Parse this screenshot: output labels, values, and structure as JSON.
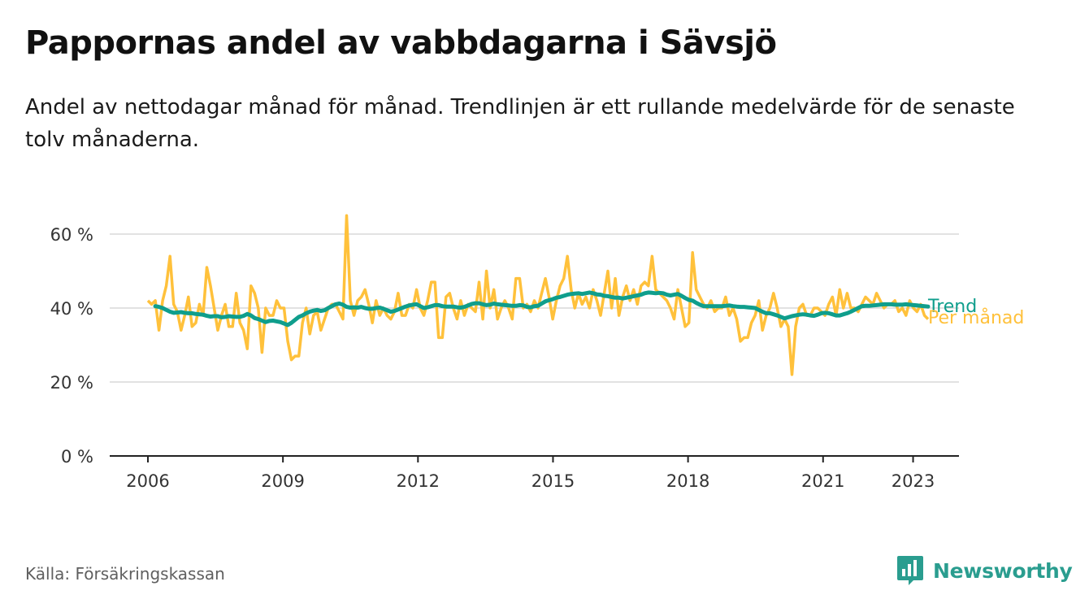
{
  "title": "Pappornas andel av vabbdagarna i Sävsjö",
  "subtitle": "Andel av nettodagar månad för månad. Trendlinjen är ett rullande medelvärde för de senaste tolv månaderna.",
  "source": "Källa: Försäkringskassan",
  "brand": "Newsworthy",
  "colors": {
    "monthly": "#ffc13b",
    "trend": "#0f9e8c",
    "brand": "#2a9d8f",
    "grid": "#d9d9d9",
    "axis": "#222222"
  },
  "chart_data": {
    "type": "line",
    "xlabel": "",
    "ylabel": "",
    "ylim": [
      0,
      60
    ],
    "yticks": [
      "0 %",
      "20 %",
      "40 %",
      "60 %"
    ],
    "xticks": [
      "2006",
      "2009",
      "2012",
      "2015",
      "2018",
      "2021",
      "2023"
    ],
    "x_start": "2006-01",
    "x_end": "2023-05",
    "grid": true,
    "series": [
      {
        "name": "Per månad",
        "values": [
          42,
          41,
          42,
          34,
          42,
          46,
          54,
          41,
          39,
          34,
          38,
          43,
          35,
          36,
          41,
          38,
          51,
          46,
          40,
          34,
          38,
          41,
          35,
          35,
          44,
          36,
          34,
          29,
          46,
          44,
          40,
          28,
          40,
          38,
          38,
          42,
          40,
          40,
          31,
          26,
          27,
          27,
          36,
          40,
          33,
          38,
          39,
          34,
          37,
          40,
          41,
          41,
          39,
          37,
          65,
          42,
          38,
          42,
          43,
          45,
          41,
          36,
          42,
          38,
          40,
          38,
          37,
          39,
          44,
          38,
          38,
          41,
          40,
          45,
          40,
          38,
          42,
          47,
          47,
          32,
          32,
          43,
          44,
          40,
          37,
          42,
          38,
          41,
          40,
          39,
          47,
          37,
          50,
          40,
          45,
          37,
          40,
          42,
          40,
          37,
          48,
          48,
          40,
          41,
          39,
          42,
          40,
          44,
          48,
          43,
          37,
          42,
          46,
          48,
          54,
          45,
          40,
          44,
          41,
          43,
          40,
          45,
          42,
          38,
          44,
          50,
          40,
          48,
          38,
          43,
          46,
          42,
          45,
          41,
          46,
          47,
          46,
          54,
          45,
          44,
          43,
          42,
          40,
          37,
          45,
          40,
          35,
          36,
          55,
          45,
          43,
          41,
          40,
          42,
          39,
          40,
          40,
          43,
          38,
          40,
          37,
          31,
          32,
          32,
          36,
          38,
          42,
          34,
          38,
          40,
          44,
          40,
          35,
          37,
          35,
          22,
          35,
          40,
          41,
          38,
          38,
          40,
          40,
          39,
          38,
          41,
          43,
          38,
          45,
          40,
          44,
          40,
          40,
          39,
          41,
          43,
          42,
          41,
          44,
          42,
          40,
          41,
          41,
          42,
          39,
          40,
          38,
          42,
          40,
          39,
          41,
          38,
          37
        ]
      },
      {
        "name": "Trend",
        "values": [
          40.5,
          40.3,
          40.0,
          39.5,
          39.0,
          38.7,
          38.8,
          38.9,
          38.7,
          38.6,
          38.6,
          38.4,
          38.3,
          38.2,
          37.9,
          37.7,
          37.8,
          37.8,
          37.5,
          37.6,
          37.8,
          37.7,
          37.6,
          37.6,
          37.9,
          38.4,
          38.0,
          37.3,
          37.0,
          36.6,
          36.2,
          36.5,
          36.6,
          36.4,
          36.2,
          35.8,
          35.4,
          36.0,
          36.8,
          37.6,
          38.0,
          38.6,
          39.0,
          39.3,
          39.5,
          39.2,
          39.4,
          40.0,
          40.5,
          41.0,
          41.2,
          40.9,
          40.3,
          40.1,
          40.2,
          40.1,
          40.3,
          40.0,
          39.8,
          39.8,
          40.0,
          40.1,
          39.8,
          39.4,
          39.0,
          39.2,
          39.6,
          40.0,
          40.4,
          40.7,
          40.9,
          41.0,
          40.5,
          40.0,
          40.2,
          40.5,
          40.8,
          40.8,
          40.5,
          40.4,
          40.4,
          40.4,
          40.2,
          40.1,
          40.3,
          40.7,
          41.1,
          41.3,
          41.3,
          41.0,
          40.8,
          40.9,
          41.2,
          41.0,
          40.9,
          40.8,
          40.7,
          40.6,
          40.6,
          40.8,
          40.7,
          40.3,
          40.2,
          40.5,
          40.6,
          41.2,
          41.8,
          42.1,
          42.4,
          42.8,
          43.0,
          43.3,
          43.6,
          43.8,
          43.9,
          44.0,
          43.8,
          44.0,
          44.2,
          44.0,
          43.7,
          43.6,
          43.3,
          43.2,
          43.0,
          42.8,
          42.8,
          42.6,
          42.8,
          43.0,
          43.2,
          43.4,
          43.6,
          44.0,
          44.2,
          44.1,
          44.0,
          44.1,
          44.0,
          43.6,
          43.4,
          43.6,
          43.8,
          43.3,
          42.7,
          42.2,
          42.0,
          41.4,
          40.9,
          40.5,
          40.5,
          40.5,
          40.5,
          40.5,
          40.5,
          40.6,
          40.7,
          40.5,
          40.4,
          40.3,
          40.3,
          40.2,
          40.1,
          40.0,
          39.5,
          39.0,
          38.6,
          38.6,
          38.3,
          38.0,
          37.6,
          37.2,
          37.5,
          37.8,
          38.0,
          38.2,
          38.3,
          38.2,
          38.0,
          37.9,
          38.2,
          38.6,
          38.7,
          38.6,
          38.3,
          38.0,
          38.0,
          38.3,
          38.6,
          39.0,
          39.5,
          40.0,
          40.5,
          40.6,
          40.6,
          40.7,
          40.8,
          40.9,
          41.0,
          41.0,
          41.0,
          40.9,
          40.9,
          40.9,
          41.0,
          40.9,
          40.8,
          40.7,
          40.6,
          40.5,
          40.4
        ]
      }
    ]
  }
}
